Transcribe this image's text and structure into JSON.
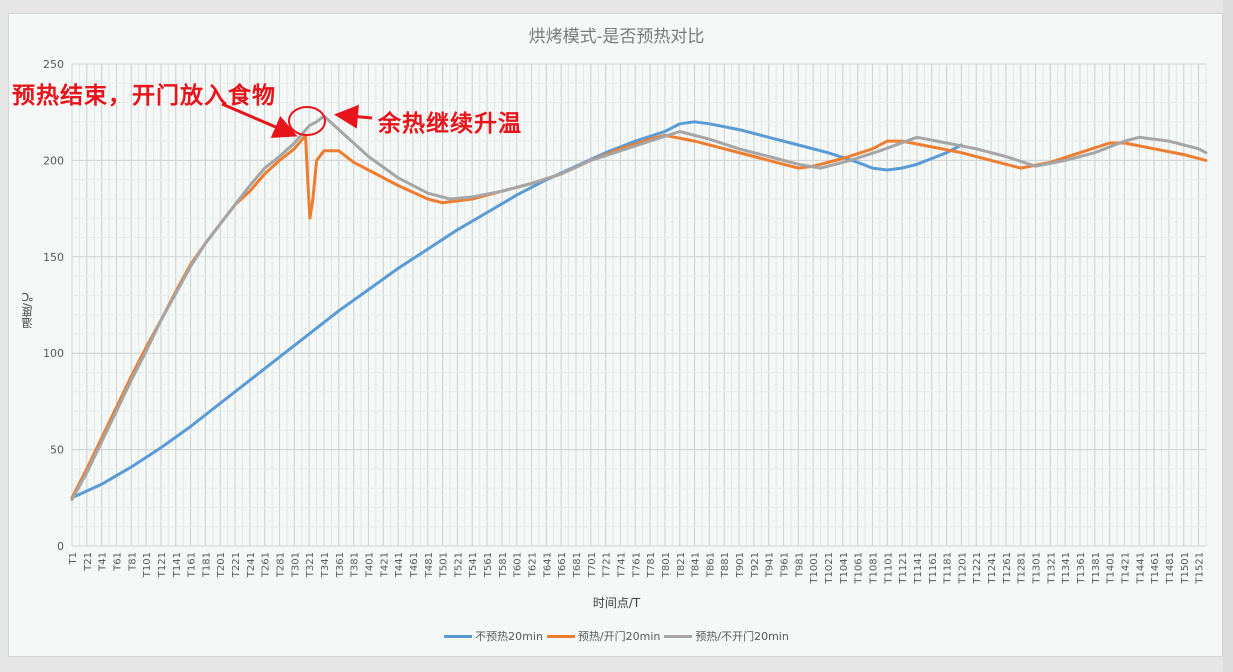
{
  "chart_data": {
    "type": "line",
    "title": "烘烤模式-是否预热对比",
    "xlabel": "时间点/T",
    "ylabel": "温度/℃",
    "ylim": [
      0,
      250
    ],
    "yticks": [
      0,
      50,
      100,
      150,
      200,
      250
    ],
    "xlim": [
      1,
      1531
    ],
    "grid": true,
    "legend_position": "bottom",
    "x_tick_labels": [
      "T1",
      "T21",
      "T41",
      "T61",
      "T81",
      "T101",
      "T121",
      "T141",
      "T161",
      "T181",
      "T201",
      "T221",
      "T241",
      "T261",
      "T281",
      "T301",
      "T321",
      "T341",
      "T361",
      "T381",
      "T401",
      "T421",
      "T441",
      "T461",
      "T481",
      "T501",
      "T521",
      "T541",
      "T561",
      "T581",
      "T601",
      "T621",
      "T641",
      "T661",
      "T681",
      "T701",
      "T721",
      "T741",
      "T761",
      "T781",
      "T801",
      "T821",
      "T841",
      "T861",
      "T881",
      "T901",
      "T921",
      "T941",
      "T961",
      "T981",
      "T1001",
      "T1021",
      "T1041",
      "T1061",
      "T1081",
      "T1101",
      "T1121",
      "T1141",
      "T1161",
      "T1181",
      "T1201",
      "T1221",
      "T1241",
      "T1261",
      "T1281",
      "T1301",
      "T1321",
      "T1341",
      "T1361",
      "T1381",
      "T1401",
      "T1421",
      "T1441",
      "T1461",
      "T1481",
      "T1501",
      "T1521"
    ],
    "series": [
      {
        "name": "不预热20min",
        "color": "#5b9bd5",
        "x": [
          1,
          41,
          81,
          121,
          161,
          201,
          241,
          281,
          321,
          361,
          401,
          441,
          481,
          521,
          561,
          601,
          641,
          681,
          721,
          761,
          801,
          821,
          841,
          861,
          901,
          941,
          981,
          1021,
          1061,
          1081,
          1101,
          1121,
          1141,
          1161,
          1181,
          1201
        ],
        "y": [
          25,
          32,
          41,
          51,
          62,
          74,
          86,
          98,
          110,
          122,
          133,
          144,
          154,
          164,
          173,
          182,
          190,
          197,
          204,
          210,
          215,
          219,
          220,
          219,
          216,
          212,
          208,
          204,
          199,
          196,
          195,
          196,
          198,
          201,
          204,
          208
        ]
      },
      {
        "name": "预热/开门20min",
        "color": "#ed7d31",
        "x": [
          1,
          21,
          41,
          61,
          81,
          101,
          121,
          141,
          161,
          181,
          201,
          221,
          241,
          261,
          281,
          301,
          316,
          319,
          322,
          326,
          331,
          341,
          361,
          381,
          401,
          441,
          481,
          501,
          541,
          581,
          621,
          661,
          701,
          741,
          781,
          801,
          841,
          881,
          921,
          961,
          981,
          1001,
          1041,
          1081,
          1101,
          1121,
          1161,
          1201,
          1241,
          1281,
          1321,
          1361,
          1401,
          1421,
          1461,
          1501,
          1531
        ],
        "y": [
          25,
          40,
          56,
          72,
          88,
          103,
          117,
          132,
          146,
          157,
          167,
          177,
          184,
          193,
          200,
          206,
          213,
          190,
          170,
          180,
          200,
          205,
          205,
          199,
          195,
          187,
          180,
          178,
          180,
          184,
          188,
          193,
          200,
          206,
          211,
          213,
          210,
          206,
          202,
          198,
          196,
          197,
          201,
          206,
          210,
          210,
          207,
          204,
          200,
          196,
          199,
          204,
          209,
          209,
          206,
          203,
          200
        ]
      },
      {
        "name": "预热/不开门20min",
        "color": "#a5a5a5",
        "x": [
          1,
          21,
          41,
          61,
          81,
          101,
          121,
          141,
          161,
          181,
          201,
          221,
          241,
          261,
          281,
          301,
          321,
          331,
          341,
          361,
          381,
          401,
          441,
          481,
          511,
          541,
          581,
          621,
          661,
          701,
          741,
          781,
          821,
          861,
          901,
          941,
          981,
          1011,
          1051,
          1091,
          1141,
          1181,
          1221,
          1261,
          1301,
          1341,
          1381,
          1421,
          1441,
          1481,
          1521,
          1531
        ],
        "y": [
          24,
          38,
          54,
          70,
          86,
          101,
          117,
          131,
          145,
          157,
          167,
          177,
          187,
          196,
          202,
          209,
          218,
          220,
          223,
          216,
          209,
          202,
          191,
          183,
          180,
          181,
          184,
          188,
          193,
          200,
          205,
          210,
          215,
          211,
          206,
          202,
          198,
          196,
          200,
          205,
          212,
          209,
          206,
          202,
          197,
          200,
          204,
          210,
          212,
          210,
          206,
          204
        ]
      }
    ],
    "annotations": [
      {
        "text": "预热结束，开门放入食物",
        "type": "arrow-callout"
      },
      {
        "text": "余热继续升温",
        "type": "arrow-callout"
      }
    ]
  },
  "title": "烘烤模式-是否预热对比",
  "axes": {
    "xlabel": "时间点/T",
    "ylabel": "温度/℃"
  },
  "legend": [
    {
      "label": "不预热20min",
      "color": "#5b9bd5"
    },
    {
      "label": "预热/开门20min",
      "color": "#ed7d31"
    },
    {
      "label": "预热/不开门20min",
      "color": "#a5a5a5"
    }
  ],
  "annotations": {
    "left": "预热结束，开门放入食物",
    "right": "余热继续升温"
  }
}
